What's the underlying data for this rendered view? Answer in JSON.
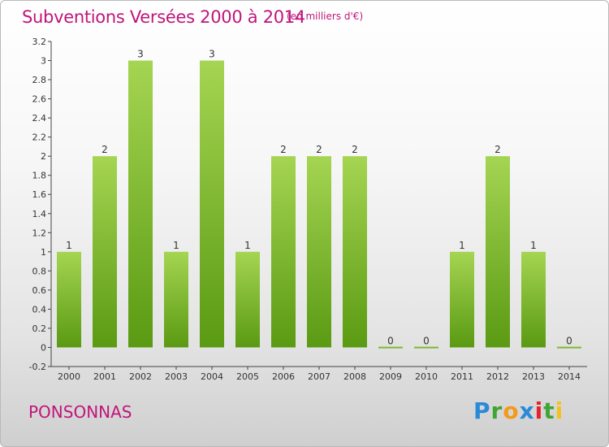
{
  "title": "Subventions Versées 2000 à 2014",
  "subtitle": "(en milliers d'€)",
  "commune": "PONSONNAS",
  "logo": "Proxiti",
  "colors": {
    "title": "#c0157a",
    "bar_top": "#a5d552",
    "bar_bottom": "#5a9a12"
  },
  "chart_data": {
    "type": "bar",
    "title": "Subventions Versées 2000 à 2014",
    "subtitle": "(en milliers d'€)",
    "categories": [
      "2000",
      "2001",
      "2002",
      "2003",
      "2004",
      "2005",
      "2006",
      "2007",
      "2008",
      "2009",
      "2010",
      "2011",
      "2012",
      "2013",
      "2014"
    ],
    "values": [
      1,
      2,
      3,
      1,
      3,
      1,
      2,
      2,
      2,
      0,
      0,
      1,
      2,
      1,
      0
    ],
    "value_labels": [
      "1",
      "2",
      "3",
      "1",
      "3",
      "1",
      "2",
      "2",
      "2",
      "0",
      "0",
      "1",
      "2",
      "1",
      "0"
    ],
    "ylim": [
      -0.2,
      3.2
    ],
    "yticks": [
      "-0.2",
      "0",
      "0.2",
      "0.4",
      "0.6",
      "0.8",
      "1",
      "1.2",
      "1.4",
      "1.6",
      "1.8",
      "2",
      "2.2",
      "2.4",
      "2.6",
      "2.8",
      "3",
      "3.2"
    ],
    "grid": false,
    "legend": "none"
  }
}
